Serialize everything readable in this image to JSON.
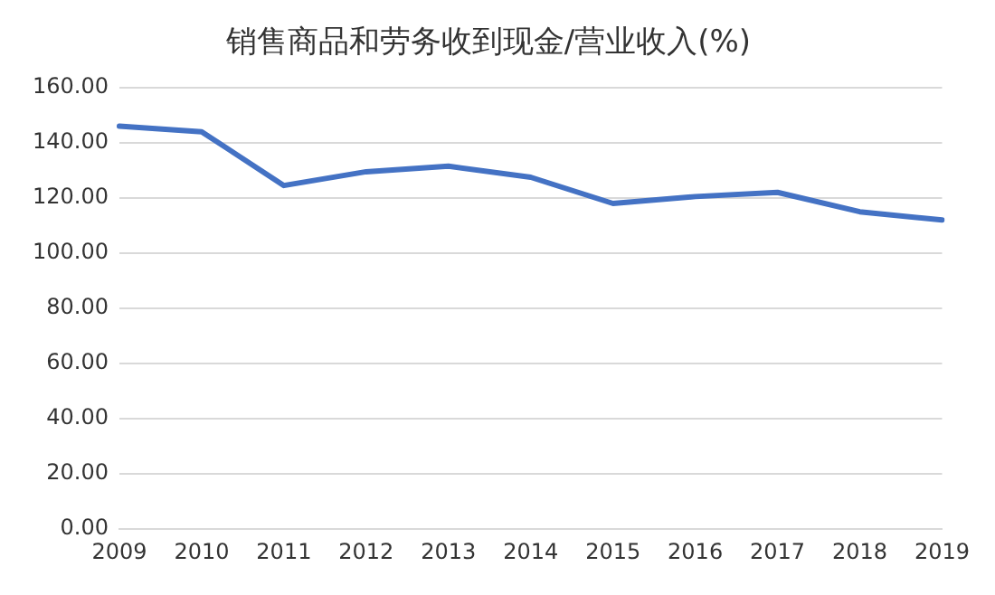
{
  "chart_data": {
    "type": "line",
    "title": "销售商品和劳务收到现金/营业收入(%)",
    "categories": [
      "2009",
      "2010",
      "2011",
      "2012",
      "2013",
      "2014",
      "2015",
      "2016",
      "2017",
      "2018",
      "2019"
    ],
    "series": [
      {
        "color": "#4472c4",
        "values": [
          146,
          144,
          124.5,
          129.5,
          131.5,
          127.5,
          118,
          120.5,
          122,
          115,
          112
        ]
      }
    ],
    "ylim": [
      0,
      160
    ],
    "yticks": [
      {
        "value": 0,
        "label": "0.00"
      },
      {
        "value": 20,
        "label": "20.00"
      },
      {
        "value": 40,
        "label": "40.00"
      },
      {
        "value": 60,
        "label": "60.00"
      },
      {
        "value": 80,
        "label": "80.00"
      },
      {
        "value": 100,
        "label": "100.00"
      },
      {
        "value": 120,
        "label": "120.00"
      },
      {
        "value": 140,
        "label": "140.00"
      },
      {
        "value": 160,
        "label": "160.00"
      }
    ],
    "grid": "y",
    "legend": false,
    "marker": "none",
    "line_style": "solid"
  }
}
